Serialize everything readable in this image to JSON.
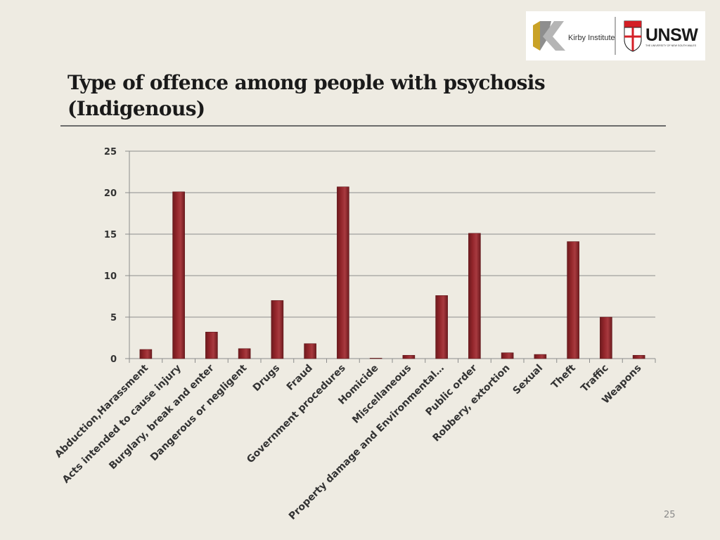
{
  "slide": {
    "title_line1": "Type of offence among people with psychosis",
    "title_line2": "(Indigenous)",
    "page_number": "25"
  },
  "logos": {
    "kirby_text": "Kirby Institute",
    "unsw_text": "UNSW",
    "unsw_subtext": "THE UNIVERSITY OF NEW SOUTH WALES"
  },
  "colors": {
    "bar": "#93262b",
    "grid": "#8c8c8c",
    "background": "#eeebe2"
  },
  "chart_data": {
    "type": "bar",
    "title": "",
    "xlabel": "",
    "ylabel": "",
    "ylim": [
      0,
      25
    ],
    "yticks": [
      0,
      5,
      10,
      15,
      20,
      25
    ],
    "grid": true,
    "categories": [
      "Abduction,Harassment",
      "Acts intended to cause injury",
      "Burglary, break and enter",
      "Dangerous or negligent",
      "Drugs",
      "Fraud",
      "Government procedures",
      "Homicide",
      "Miscellaneous",
      "Property damage and Environmental…",
      "Public order",
      "Robbery, extortion",
      "Sexual",
      "Theft",
      "Traffic",
      "Weapons"
    ],
    "values": [
      1.1,
      20.1,
      3.2,
      1.2,
      7.0,
      1.8,
      20.7,
      0.05,
      0.4,
      7.6,
      15.1,
      0.7,
      0.5,
      14.1,
      5.0,
      0.4
    ]
  }
}
